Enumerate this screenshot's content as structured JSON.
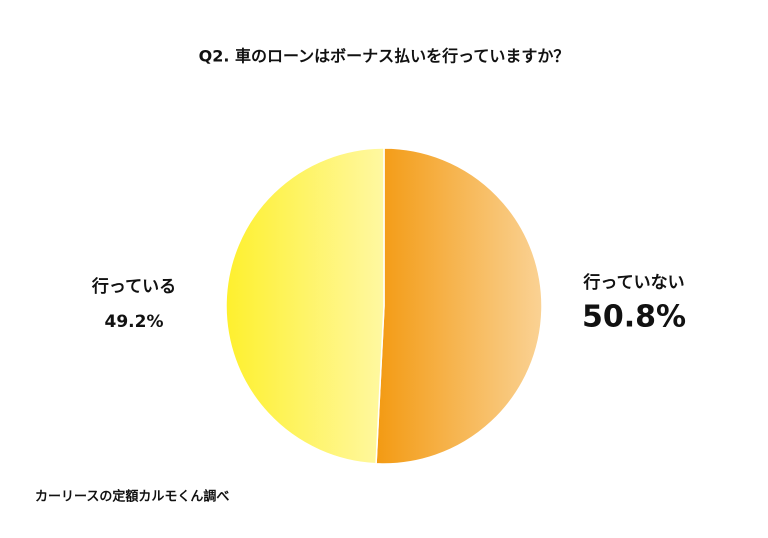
{
  "chart_data": {
    "type": "pie",
    "title": "Q2. 車のローンはボーナス払いを行っていますか？",
    "categories": [
      "行っていない",
      "行っている"
    ],
    "values": [
      50.8,
      49.2
    ],
    "value_labels": [
      "50.8%",
      "49.2%"
    ],
    "colors": [
      "#f39a12",
      "#fef02e"
    ],
    "source": "カーリースの定額カルモくん調べ"
  }
}
